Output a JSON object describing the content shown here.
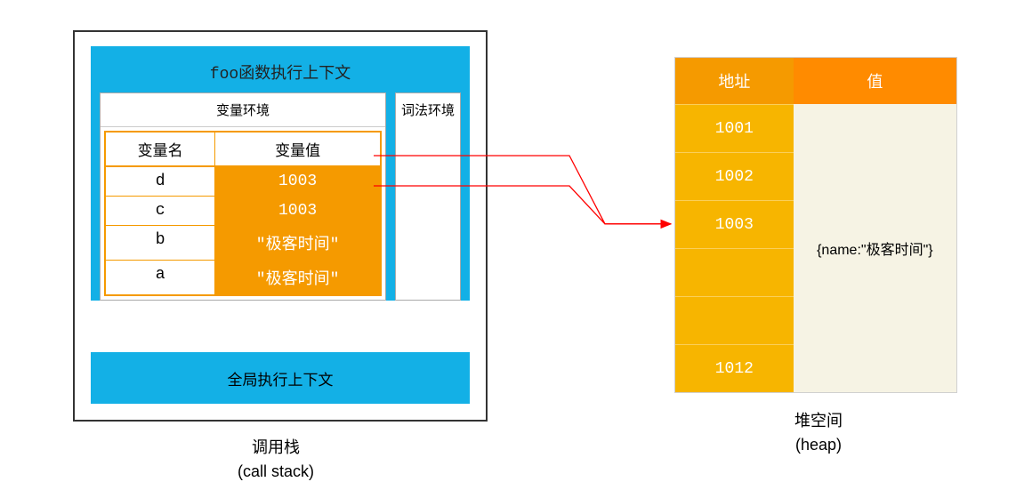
{
  "colors": {
    "callstack_bg": "#13b0e6",
    "table_border": "#f59a00",
    "value_bg": "#f59a00",
    "heap_head_addr": "#f59a00",
    "heap_head_val": "#ff8b00",
    "heap_addr_col": "#f7b500",
    "heap_val_col": "#f6f3e4",
    "arrow": "#ff0000"
  },
  "callstack": {
    "foo_title": "foo函数执行上下文",
    "var_env_title": "变量环境",
    "lex_env_title": "词法环境",
    "columns": {
      "name": "变量名",
      "value": "变量值"
    },
    "rows": [
      {
        "name": "d",
        "value": "1003"
      },
      {
        "name": "c",
        "value": "1003"
      },
      {
        "name": "b",
        "value": "\"极客时间\""
      },
      {
        "name": "a",
        "value": "\"极客时间\""
      }
    ],
    "global_title": "全局执行上下文"
  },
  "heap": {
    "columns": {
      "addr": "地址",
      "value": "值"
    },
    "addresses": [
      "1001",
      "1002",
      "1003",
      "",
      "",
      "1012"
    ],
    "value_cell": "{name:\"极客时间\"}"
  },
  "captions": {
    "callstack_cn": "调用栈",
    "callstack_en": "(call stack)",
    "heap_cn": "堆空间",
    "heap_en": "(heap)"
  },
  "arrows": [
    {
      "from_row": 0,
      "to_addr_index": 2
    },
    {
      "from_row": 1,
      "to_addr_index": 2
    }
  ]
}
